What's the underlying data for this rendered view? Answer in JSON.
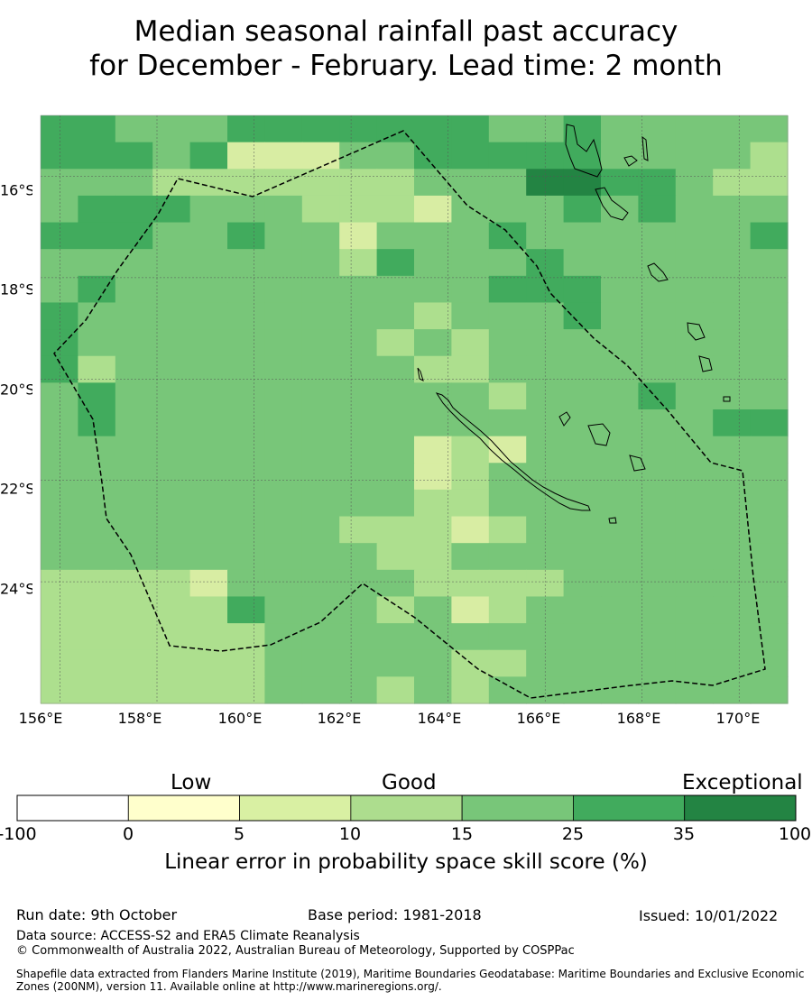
{
  "title_line1": "Median seasonal rainfall past accuracy",
  "title_line2": "for December - February. Lead time: 2 month",
  "map": {
    "lon_labels": [
      "156°E",
      "158°E",
      "160°E",
      "162°E",
      "164°E",
      "166°E",
      "168°E",
      "170°E"
    ],
    "lat_labels": [
      "16°S",
      "18°S",
      "20°S",
      "22°S",
      "24°S"
    ],
    "lon_range": [
      155.6,
      171.0
    ],
    "lat_range": [
      -26.4,
      -14.8
    ],
    "gridlines": true,
    "boundary_style": "dashed",
    "skill_grid_rows_top_to_bottom": [
      "44333444444433433333",
      "44434111334444433332",
      "33322222223335544322",
      "34443332221333434333",
      "44433433133343333334",
      "33333333243334333333",
      "34333333333344433333",
      "43333333332333433333",
      "43333333323233333333",
      "42333333332233333333",
      "34333333333323334333",
      "34333333333333333344",
      "33333333331213333333",
      "33333333331233333333",
      "33333333332233333333",
      "33333333222123333333",
      "33333333322333333333",
      "22221333332222333333",
      "22222433323123333333",
      "22222233333333333333",
      "22222233333223333333",
      "22222233323233333333"
    ],
    "skill_class_colors": [
      "#ffffd0",
      "#d8eda3",
      "#addf8e",
      "#78c679",
      "#41ab5d",
      "#238443"
    ]
  },
  "colorbar": {
    "category_low": "Low",
    "category_good": "Good",
    "category_exceptional": "Exceptional",
    "ticks": [
      "-100",
      "0",
      "5",
      "10",
      "15",
      "25",
      "35",
      "100"
    ],
    "colors": [
      "#ffffff",
      "#ffffcc",
      "#d9f0a3",
      "#addd8e",
      "#78c679",
      "#41ab5d",
      "#238443"
    ],
    "label": "Linear error in probability space skill score (%)"
  },
  "footer": {
    "run_date": "Run date: 9th October",
    "base_period": "Base period: 1981-2018",
    "issued": "Issued: 10/01/2022",
    "data_source": "Data source: ACCESS-S2 and ERA5 Climate Reanalysis",
    "copyright": "© Commonwealth of Australia 2022, Australian Bureau of Meteorology, Supported by COSPPac",
    "shapefile": "Shapefile data extracted from Flanders Marine Institute (2019), Maritime Boundaries Geodatabase: Maritime Boundaries and Exclusive Economic Zones (200NM), version 11. Available online at http://www.marineregions.org/."
  }
}
